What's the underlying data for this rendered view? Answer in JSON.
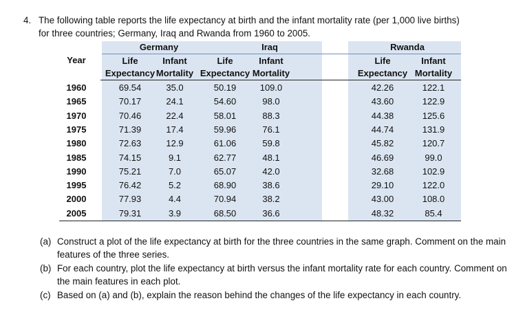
{
  "question": {
    "number": "4.",
    "line1": "The following table reports the life expectancy at birth and the infant mortality rate (per 1,000 live births)",
    "line2": "for three countries; Germany, Iraq and Rwanda from 1960 to 2005."
  },
  "table": {
    "countries": [
      "Germany",
      "Iraq",
      "Rwanda"
    ],
    "year_header": "Year",
    "col_headers": [
      {
        "l1": "Life",
        "l2": "Expectancy"
      },
      {
        "l1": "Infant",
        "l2": "Mortality"
      },
      {
        "l1": "Life",
        "l2": "Expectancy"
      },
      {
        "l1": "Infant",
        "l2": "Mortality"
      },
      {
        "l1": "Life",
        "l2": "Expectancy"
      },
      {
        "l1": "Infant",
        "l2": "Mortality"
      }
    ],
    "rows": [
      {
        "year": "1960",
        "values": [
          "69.54",
          "35.0",
          "50.19",
          "109.0",
          "42.26",
          "122.1"
        ]
      },
      {
        "year": "1965",
        "values": [
          "70.17",
          "24.1",
          "54.60",
          "98.0",
          "43.60",
          "122.9"
        ]
      },
      {
        "year": "1970",
        "values": [
          "70.46",
          "22.4",
          "58.01",
          "88.3",
          "44.38",
          "125.6"
        ]
      },
      {
        "year": "1975",
        "values": [
          "71.39",
          "17.4",
          "59.96",
          "76.1",
          "44.74",
          "131.9"
        ]
      },
      {
        "year": "1980",
        "values": [
          "72.63",
          "12.9",
          "61.06",
          "59.8",
          "45.82",
          "120.7"
        ]
      },
      {
        "year": "1985",
        "values": [
          "74.15",
          "9.1",
          "62.77",
          "48.1",
          "46.69",
          "99.0"
        ]
      },
      {
        "year": "1990",
        "values": [
          "75.21",
          "7.0",
          "65.07",
          "42.0",
          "32.68",
          "102.9"
        ]
      },
      {
        "year": "1995",
        "values": [
          "76.42",
          "5.2",
          "68.90",
          "38.6",
          "29.10",
          "122.0"
        ]
      },
      {
        "year": "2000",
        "values": [
          "77.93",
          "4.4",
          "70.94",
          "38.2",
          "43.00",
          "108.0"
        ]
      },
      {
        "year": "2005",
        "values": [
          "79.31",
          "3.9",
          "68.50",
          "36.6",
          "48.32",
          "85.4"
        ]
      }
    ]
  },
  "parts": [
    {
      "label": "(a)",
      "text": "Construct a plot of the life expectancy at birth for the three countries in the same graph. Comment on the main features of the three series."
    },
    {
      "label": "(b)",
      "text": "For each country, plot the life expectancy at birth versus the infant mortality rate for each country. Comment on the main features in each plot."
    },
    {
      "label": "(c)",
      "text": "Based on (a) and (b), explain the reason behind the changes of the life expectancy in each country."
    }
  ],
  "colors": {
    "band": "#dbe5f1",
    "rule": "#6d8fbf"
  }
}
